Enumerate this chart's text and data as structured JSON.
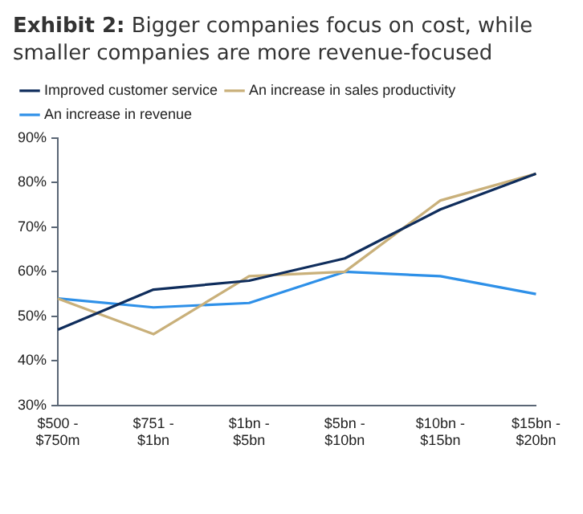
{
  "chart_data": {
    "type": "line",
    "title": "Exhibit 2: Bigger companies focus on cost, while smaller companies are more revenue-focused",
    "categories": [
      "$500 - $750m",
      "$751 - $1bn",
      "$1bn - $5bn",
      "$5bn - $10bn",
      "$10bn - $15bn",
      "$15bn - $20bn"
    ],
    "series": [
      {
        "name": "Improved customer service",
        "color": "#0f2d5c",
        "values": [
          47,
          56,
          58,
          63,
          74,
          82
        ]
      },
      {
        "name": "An increase in sales productivity",
        "color": "#c9b07a",
        "values": [
          54,
          46,
          59,
          60,
          76,
          82
        ]
      },
      {
        "name": "An increase in revenue",
        "color": "#2e90e8",
        "values": [
          54,
          52,
          53,
          60,
          59,
          55
        ]
      }
    ],
    "ylim": [
      30,
      90
    ],
    "yticks": [
      {
        "value": 30,
        "label": "30%"
      },
      {
        "value": 40,
        "label": "40%"
      },
      {
        "value": 50,
        "label": "50%"
      },
      {
        "value": 60,
        "label": "60%"
      },
      {
        "value": 70,
        "label": "70%"
      },
      {
        "value": 80,
        "label": "80%"
      },
      {
        "value": 90,
        "label": "90%"
      }
    ],
    "grid": false,
    "legend": "top",
    "marker": "none",
    "line_style": "solid"
  }
}
